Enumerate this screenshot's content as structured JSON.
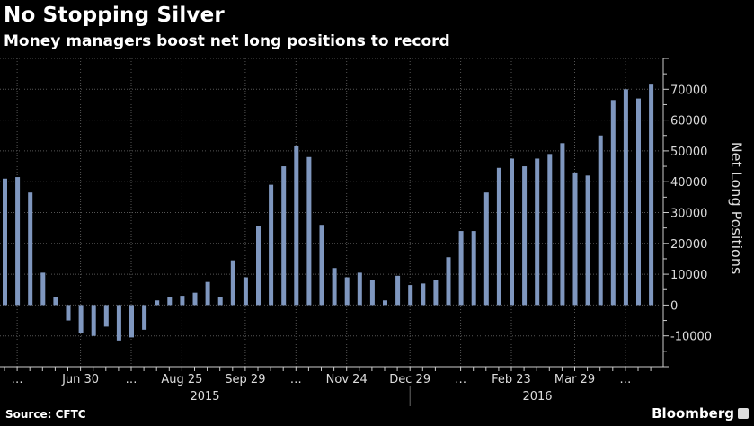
{
  "title": "No Stopping Silver",
  "subtitle": "Money managers boost net long positions to record",
  "source": "Source: CFTC",
  "brand": "Bloomberg",
  "colors": {
    "bar": "#7f97bf",
    "background": "#000000",
    "grid": "#555555"
  },
  "chart_data": {
    "type": "bar",
    "title": "No Stopping Silver",
    "subtitle": "Money managers boost net long positions to record",
    "ylabel": "Net Long Positions",
    "xlabel": "",
    "ylim": [
      -20000,
      80000
    ],
    "yticks": [
      -10000,
      0,
      10000,
      20000,
      30000,
      40000,
      50000,
      60000,
      70000
    ],
    "grid": true,
    "y_axis_side": "right",
    "x": [
      "2015-05-19",
      "2015-05-26",
      "2015-06-02",
      "2015-06-09",
      "2015-06-16",
      "2015-06-23",
      "2015-06-30",
      "2015-07-07",
      "2015-07-14",
      "2015-07-21",
      "2015-07-28",
      "2015-08-04",
      "2015-08-11",
      "2015-08-18",
      "2015-08-25",
      "2015-09-01",
      "2015-09-08",
      "2015-09-15",
      "2015-09-22",
      "2015-09-29",
      "2015-10-06",
      "2015-10-13",
      "2015-10-20",
      "2015-10-27",
      "2015-11-03",
      "2015-11-10",
      "2015-11-17",
      "2015-11-24",
      "2015-12-01",
      "2015-12-08",
      "2015-12-15",
      "2015-12-22",
      "2015-12-29",
      "2016-01-05",
      "2016-01-12",
      "2016-01-19",
      "2016-01-26",
      "2016-02-02",
      "2016-02-09",
      "2016-02-16",
      "2016-02-23",
      "2016-03-01",
      "2016-03-08",
      "2016-03-15",
      "2016-03-22",
      "2016-03-29",
      "2016-04-05",
      "2016-04-12",
      "2016-04-19",
      "2016-04-26",
      "2016-05-03",
      "2016-05-10"
    ],
    "values": [
      41000,
      41500,
      36500,
      10500,
      2500,
      -5000,
      -9000,
      -10000,
      -7000,
      -11500,
      -10500,
      -8000,
      1500,
      2500,
      3000,
      4000,
      7500,
      2500,
      14500,
      9000,
      25500,
      39000,
      45000,
      51500,
      48000,
      26000,
      12000,
      9000,
      10500,
      8000,
      1500,
      9500,
      6500,
      7000,
      8000,
      15500,
      24000,
      24000,
      36500,
      44500,
      47500,
      45000,
      47500,
      49000,
      52500,
      43000,
      42000,
      55000,
      66500,
      70000,
      67000,
      71500
    ],
    "x_tick_labels": [
      {
        "at": "2015-05-26",
        "label": "…"
      },
      {
        "at": "2015-06-30",
        "label": "Jun 30"
      },
      {
        "at": "2015-07-28",
        "label": "…"
      },
      {
        "at": "2015-08-25",
        "label": "Aug 25"
      },
      {
        "at": "2015-09-29",
        "label": "Sep 29"
      },
      {
        "at": "2015-10-27",
        "label": "…"
      },
      {
        "at": "2015-11-24",
        "label": "Nov 24"
      },
      {
        "at": "2015-12-29",
        "label": "Dec 29"
      },
      {
        "at": "2016-01-26",
        "label": "…"
      },
      {
        "at": "2016-02-23",
        "label": "Feb 23"
      },
      {
        "at": "2016-03-29",
        "label": "Mar 29"
      },
      {
        "at": "2016-04-26",
        "label": "…"
      }
    ],
    "year_labels": [
      "2015",
      "2016"
    ]
  }
}
